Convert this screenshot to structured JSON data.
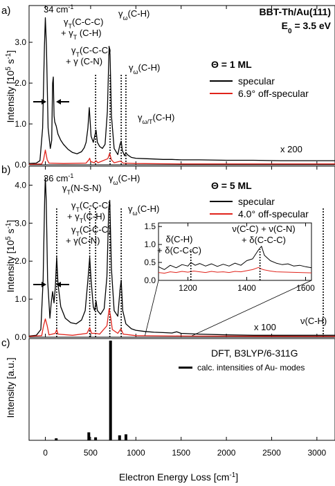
{
  "figure": {
    "sample": "BBT-Th/Au(111)",
    "energy": "E0 = 3.5 eV",
    "xlabel": "Electron Energy Loss [cm-1]",
    "panel_labels": [
      "a)",
      "b)",
      "c)"
    ]
  },
  "colors": {
    "specular": "#000000",
    "off_specular": "#e0231b",
    "frame": "#000000"
  },
  "chart_data": [
    {
      "type": "line",
      "panel": "a)",
      "ylabel": "Intensity [10^5 s^-1]",
      "xlim": [
        -180,
        3200
      ],
      "ylim": [
        0,
        3.9
      ],
      "yticks": [
        0,
        1.0,
        2.0,
        3.0
      ],
      "xticks": [
        0,
        500,
        1000,
        1500,
        2000,
        2500,
        3000
      ],
      "legend": {
        "title": "Θ = 1 ML",
        "position": "right"
      },
      "magnification": "x 200",
      "series": [
        {
          "name": "specular",
          "color": "#000000",
          "points": [
            [
              -180,
              0.03
            ],
            [
              -100,
              0.04
            ],
            [
              -60,
              0.1
            ],
            [
              -30,
              0.9
            ],
            [
              -10,
              2.9
            ],
            [
              0,
              3.6
            ],
            [
              12,
              2.9
            ],
            [
              30,
              0.9
            ],
            [
              55,
              0.4
            ],
            [
              70,
              0.6
            ],
            [
              80,
              2.0
            ],
            [
              88,
              2.15
            ],
            [
              96,
              1.2
            ],
            [
              104,
              1.05
            ],
            [
              120,
              0.95
            ],
            [
              140,
              0.75
            ],
            [
              170,
              0.6
            ],
            [
              200,
              0.5
            ],
            [
              250,
              0.38
            ],
            [
              300,
              0.3
            ],
            [
              350,
              0.27
            ],
            [
              400,
              0.32
            ],
            [
              430,
              0.42
            ],
            [
              450,
              0.55
            ],
            [
              470,
              0.9
            ],
            [
              485,
              1.4
            ],
            [
              495,
              1.05
            ],
            [
              505,
              0.7
            ],
            [
              530,
              0.55
            ],
            [
              545,
              0.7
            ],
            [
              560,
              0.85
            ],
            [
              575,
              0.55
            ],
            [
              600,
              0.45
            ],
            [
              630,
              0.4
            ],
            [
              660,
              0.5
            ],
            [
              685,
              1.3
            ],
            [
              705,
              2.9
            ],
            [
              715,
              2.7
            ],
            [
              730,
              1.2
            ],
            [
              760,
              0.4
            ],
            [
              800,
              0.25
            ],
            [
              825,
              0.5
            ],
            [
              838,
              0.58
            ],
            [
              850,
              0.35
            ],
            [
              875,
              0.22
            ],
            [
              890,
              0.3
            ],
            [
              905,
              0.25
            ],
            [
              950,
              0.18
            ],
            [
              1000,
              0.16
            ],
            [
              1100,
              0.15
            ],
            [
              1200,
              0.14
            ],
            [
              1300,
              0.13
            ],
            [
              1400,
              0.13
            ],
            [
              1500,
              0.12
            ],
            [
              1700,
              0.12
            ],
            [
              2000,
              0.11
            ],
            [
              2300,
              0.11
            ],
            [
              2600,
              0.1
            ],
            [
              2900,
              0.1
            ],
            [
              3200,
              0.1
            ]
          ]
        },
        {
          "name": "6.9° off-specular",
          "color": "#e0231b",
          "points": [
            [
              -180,
              0.01
            ],
            [
              -40,
              0.02
            ],
            [
              -20,
              0.12
            ],
            [
              0,
              0.36
            ],
            [
              20,
              0.12
            ],
            [
              40,
              0.04
            ],
            [
              200,
              0.03
            ],
            [
              450,
              0.04
            ],
            [
              480,
              0.12
            ],
            [
              490,
              0.16
            ],
            [
              500,
              0.08
            ],
            [
              540,
              0.05
            ],
            [
              560,
              0.1
            ],
            [
              580,
              0.05
            ],
            [
              690,
              0.15
            ],
            [
              710,
              0.28
            ],
            [
              730,
              0.12
            ],
            [
              760,
              0.05
            ],
            [
              830,
              0.09
            ],
            [
              860,
              0.04
            ],
            [
              1000,
              0.03
            ],
            [
              1500,
              0.02
            ],
            [
              3200,
              0.02
            ]
          ]
        }
      ],
      "annotations": [
        {
          "text": "34 cm-1",
          "x": 0
        },
        {
          "text": "γT(C-C-C) + γT (C-H)",
          "x": 0
        },
        {
          "text": "γT(C-C-C) + γ (C-N)",
          "x": 485
        },
        {
          "text": "γω(C-H)",
          "x": 705
        },
        {
          "text": "γω(C-H)",
          "x": 838
        },
        {
          "text": "γω/T(C-H)",
          "x": 905
        }
      ],
      "mode_markers_x": [
        555,
        715,
        838,
        890
      ]
    },
    {
      "type": "line",
      "panel": "b)",
      "ylabel": "Intensity [10^5 s^-1]",
      "xlim": [
        -180,
        3200
      ],
      "ylim": [
        0,
        4.5
      ],
      "yticks": [
        0,
        1.0,
        2.0,
        3.0,
        4.0
      ],
      "xticks": [
        0,
        500,
        1000,
        1500,
        2000,
        2500,
        3000
      ],
      "legend": {
        "title": "Θ = 5 ML",
        "position": "right"
      },
      "magnification": "x 100",
      "series": [
        {
          "name": "specular",
          "color": "#000000",
          "points": [
            [
              -180,
              0.03
            ],
            [
              -100,
              0.05
            ],
            [
              -50,
              0.2
            ],
            [
              -25,
              1.5
            ],
            [
              -8,
              3.6
            ],
            [
              0,
              4.2
            ],
            [
              10,
              3.6
            ],
            [
              25,
              1.5
            ],
            [
              50,
              0.5
            ],
            [
              65,
              0.9
            ],
            [
              80,
              1.2
            ],
            [
              95,
              0.9
            ],
            [
              110,
              1.3
            ],
            [
              125,
              2.1
            ],
            [
              140,
              1.4
            ],
            [
              170,
              0.8
            ],
            [
              220,
              0.5
            ],
            [
              280,
              0.38
            ],
            [
              340,
              0.35
            ],
            [
              400,
              0.45
            ],
            [
              440,
              0.7
            ],
            [
              470,
              1.5
            ],
            [
              490,
              2.1
            ],
            [
              505,
              1.5
            ],
            [
              530,
              0.8
            ],
            [
              545,
              0.7
            ],
            [
              560,
              0.95
            ],
            [
              575,
              0.7
            ],
            [
              610,
              0.6
            ],
            [
              650,
              0.75
            ],
            [
              680,
              1.6
            ],
            [
              700,
              3.4
            ],
            [
              712,
              3.6
            ],
            [
              730,
              1.8
            ],
            [
              760,
              0.7
            ],
            [
              800,
              0.55
            ],
            [
              825,
              1.25
            ],
            [
              838,
              1.5
            ],
            [
              855,
              0.7
            ],
            [
              890,
              0.35
            ],
            [
              950,
              0.22
            ],
            [
              1000,
              0.18
            ],
            [
              1100,
              0.15
            ],
            [
              1200,
              0.13
            ],
            [
              1300,
              0.12
            ],
            [
              1400,
              0.11
            ],
            [
              1450,
              0.14
            ],
            [
              1500,
              0.1
            ],
            [
              1700,
              0.08
            ],
            [
              2000,
              0.06
            ],
            [
              2300,
              0.05
            ],
            [
              2600,
              0.05
            ],
            [
              2900,
              0.05
            ],
            [
              3200,
              0.05
            ]
          ]
        },
        {
          "name": "4.0° off-specular",
          "color": "#e0231b",
          "points": [
            [
              -180,
              0.02
            ],
            [
              -40,
              0.04
            ],
            [
              -20,
              0.3
            ],
            [
              0,
              0.48
            ],
            [
              20,
              0.3
            ],
            [
              40,
              0.06
            ],
            [
              110,
              0.1
            ],
            [
              125,
              0.2
            ],
            [
              140,
              0.08
            ],
            [
              300,
              0.05
            ],
            [
              460,
              0.1
            ],
            [
              490,
              0.25
            ],
            [
              510,
              0.1
            ],
            [
              560,
              0.1
            ],
            [
              600,
              0.08
            ],
            [
              680,
              0.3
            ],
            [
              705,
              0.75
            ],
            [
              720,
              0.55
            ],
            [
              740,
              0.2
            ],
            [
              800,
              0.1
            ],
            [
              835,
              0.22
            ],
            [
              860,
              0.08
            ],
            [
              1000,
              0.04
            ],
            [
              1500,
              0.03
            ],
            [
              3200,
              0.02
            ]
          ]
        }
      ],
      "annotations": [
        {
          "text": "36 cm-1",
          "x": 0
        },
        {
          "text": "γT(N-S-N)",
          "x": 125
        },
        {
          "text": "γT(C-C-C) + γT(C-H)",
          "x": 125
        },
        {
          "text": "γT(C-C-C) + γ(C-N)",
          "x": 490
        },
        {
          "text": "γω(C-H)",
          "x": 712
        },
        {
          "text": "γω(C-H)",
          "x": 838
        },
        {
          "text": "ν(C-H)",
          "x": 3070
        }
      ],
      "mode_markers_x": [
        125,
        490,
        555,
        712,
        838,
        3070
      ]
    },
    {
      "type": "line",
      "panel": "b) inset",
      "xlim": [
        1100,
        1620
      ],
      "ylim": [
        0,
        1.6
      ],
      "yticks": [
        0,
        0.5,
        1.0,
        1.5
      ],
      "xticks": [
        1200,
        1400,
        1600
      ],
      "series": [
        {
          "name": "specular",
          "color": "#000000",
          "points": [
            [
              1100,
              0.38
            ],
            [
              1120,
              0.3
            ],
            [
              1140,
              0.42
            ],
            [
              1160,
              0.35
            ],
            [
              1180,
              0.44
            ],
            [
              1200,
              0.4
            ],
            [
              1210,
              0.5
            ],
            [
              1225,
              0.42
            ],
            [
              1240,
              0.47
            ],
            [
              1260,
              0.4
            ],
            [
              1280,
              0.46
            ],
            [
              1300,
              0.39
            ],
            [
              1320,
              0.45
            ],
            [
              1340,
              0.4
            ],
            [
              1360,
              0.48
            ],
            [
              1380,
              0.42
            ],
            [
              1400,
              0.55
            ],
            [
              1420,
              0.6
            ],
            [
              1440,
              0.85
            ],
            [
              1450,
              0.95
            ],
            [
              1460,
              0.7
            ],
            [
              1480,
              0.55
            ],
            [
              1500,
              0.48
            ],
            [
              1520,
              0.44
            ],
            [
              1540,
              0.46
            ],
            [
              1560,
              0.4
            ],
            [
              1580,
              0.42
            ],
            [
              1600,
              0.38
            ],
            [
              1620,
              0.35
            ]
          ]
        },
        {
          "name": "off-specular",
          "color": "#e0231b",
          "points": [
            [
              1100,
              0.22
            ],
            [
              1120,
              0.2
            ],
            [
              1140,
              0.24
            ],
            [
              1160,
              0.22
            ],
            [
              1180,
              0.25
            ],
            [
              1200,
              0.23
            ],
            [
              1220,
              0.26
            ],
            [
              1240,
              0.24
            ],
            [
              1260,
              0.22
            ],
            [
              1280,
              0.25
            ],
            [
              1300,
              0.23
            ],
            [
              1320,
              0.24
            ],
            [
              1340,
              0.22
            ],
            [
              1360,
              0.25
            ],
            [
              1380,
              0.24
            ],
            [
              1400,
              0.27
            ],
            [
              1420,
              0.3
            ],
            [
              1440,
              0.36
            ],
            [
              1455,
              0.3
            ],
            [
              1480,
              0.26
            ],
            [
              1500,
              0.24
            ],
            [
              1540,
              0.23
            ],
            [
              1580,
              0.22
            ],
            [
              1620,
              0.21
            ]
          ]
        }
      ],
      "annotations": [
        {
          "text": "δ(C-H) + δ(C-C-C)",
          "x": 1210
        },
        {
          "text": "ν(C-C) + ν(C-N) + δ(C-C-C)",
          "x": 1445
        }
      ]
    },
    {
      "type": "bar",
      "panel": "c)",
      "ylabel": "Intensity [a.u.]",
      "xlim": [
        -180,
        3200
      ],
      "title": "DFT, B3LYP/6-311G",
      "legend": {
        "entries": [
          "calc. intensities of Au- modes"
        ],
        "position": "right"
      },
      "bars_x": [
        120,
        480,
        555,
        720,
        820,
        890
      ],
      "bars_value": [
        0.02,
        0.08,
        0.03,
        1.0,
        0.05,
        0.06
      ]
    }
  ]
}
